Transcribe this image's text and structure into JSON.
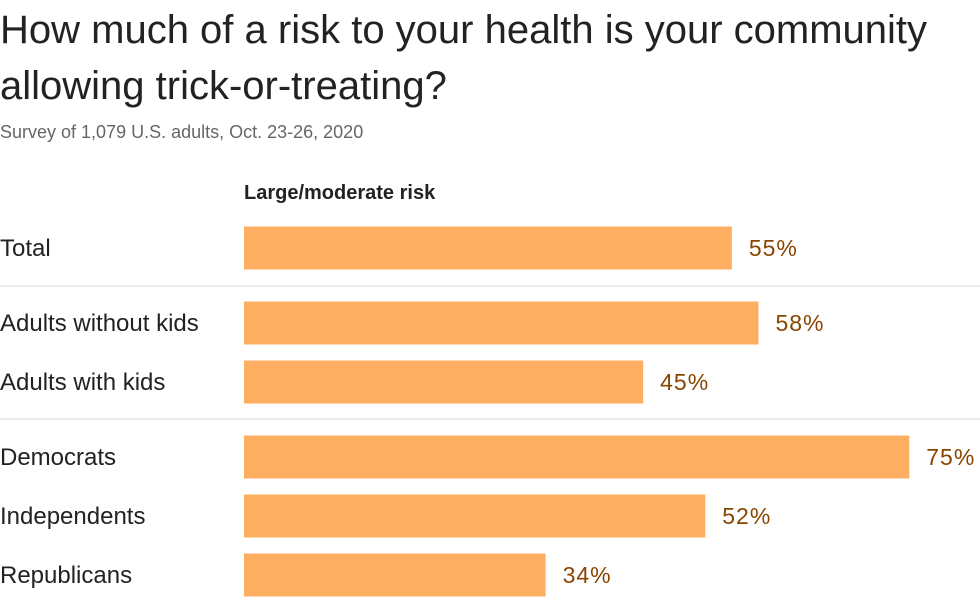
{
  "title": "How much of a risk to your health is your community allowing trick-or-treating?",
  "subtitle": "Survey of 1,079 U.S. adults, Oct. 23-26, 2020",
  "column_header": "Large/moderate risk",
  "colors": {
    "bar": "#fdae61",
    "value_text": "#8a4500",
    "divider": "#d9d9d9"
  },
  "chart_data": {
    "type": "bar",
    "orientation": "horizontal",
    "series": [
      {
        "name": "Large/moderate risk",
        "values": [
          55,
          58,
          45,
          75,
          52,
          34
        ]
      }
    ],
    "categories": [
      "Total",
      "Adults without kids",
      "Adults with kids",
      "Democrats",
      "Independents",
      "Republicans"
    ],
    "value_labels": [
      "55%",
      "58%",
      "45%",
      "75%",
      "52%",
      "34%"
    ],
    "groups": [
      [
        "Total"
      ],
      [
        "Adults without kids",
        "Adults with kids"
      ],
      [
        "Democrats",
        "Independents",
        "Republicans"
      ]
    ],
    "xlim": [
      0,
      100
    ],
    "grid": false
  }
}
